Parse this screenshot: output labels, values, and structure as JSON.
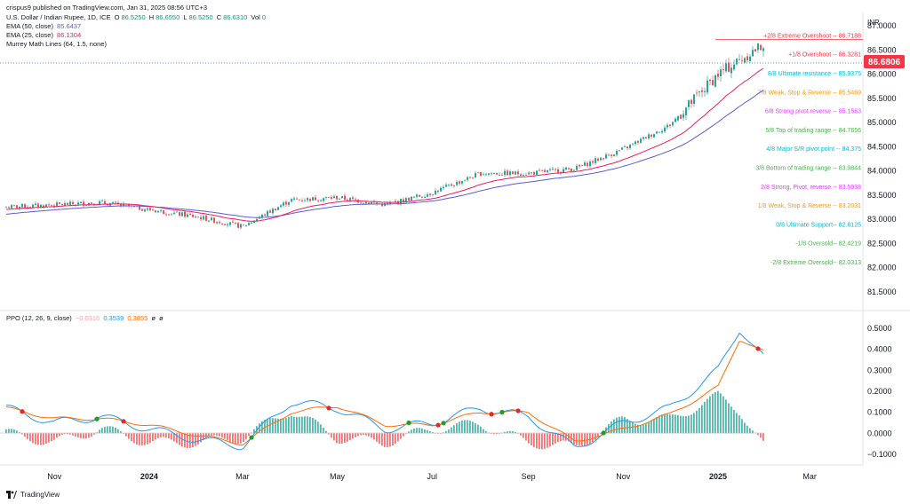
{
  "header": {
    "publisher": "crispus9 published on TradingView.com, Jan 31, 2025 08:56 UTC+3",
    "symbol": "U.S. Dollar / Indian Rupee, 1D, ICE",
    "ohlc": {
      "o_label": "O",
      "o": "86.5250",
      "h_label": "H",
      "h": "86.6550",
      "l_label": "L",
      "l": "86.5250",
      "c_label": "C",
      "c": "86.6310",
      "vol_label": "Vol",
      "vol": "0"
    },
    "ema50": {
      "label": "EMA (50, close)",
      "value": "85.6437"
    },
    "ema25": {
      "label": "EMA (25, close)",
      "value": "86.1304"
    },
    "murrey": {
      "label": "Murrey Math Lines (64, 1.5, none)"
    },
    "currency": "INR"
  },
  "ppo_legend": {
    "label": "PPO (12, 26, 9, close)",
    "hist": "−0.0316",
    "ppo": "0.3539",
    "signal": "0.3855",
    "sym1": "ø",
    "sym2": "ø"
  },
  "price_tag": "86.6806",
  "price_axis": [
    "87.0000",
    "86.5000",
    "86.0000",
    "85.5000",
    "85.0000",
    "84.5000",
    "84.0000",
    "83.5000",
    "83.0000",
    "82.5000",
    "82.0000",
    "81.5000"
  ],
  "ppo_axis": [
    "0.5000",
    "0.4000",
    "0.3000",
    "0.2000",
    "0.1000",
    "0.0000",
    "−0.1000"
  ],
  "time_axis": [
    "Nov",
    "2024",
    "Mar",
    "May",
    "Jul",
    "Sep",
    "Nov",
    "2025",
    "Mar"
  ],
  "murrey_lines": [
    {
      "label": "+2/8 Extreme Overshoot -- 86.7188",
      "value": 86.7188,
      "color": "#f23645"
    },
    {
      "label": "+1/8 Overshoot -- 86.3281",
      "value": 86.3281,
      "color": "#f23645"
    },
    {
      "label": "8/8 Ultimate resistance -- 85.9375",
      "value": 85.9375,
      "color": "#00bcd4"
    },
    {
      "label": "7/8 Weak, Stop & Reverse -- 85.5469",
      "value": 85.5469,
      "color": "#ff9800"
    },
    {
      "label": "6/8 Strong pivot reverse -- 85.1563",
      "value": 85.1563,
      "color": "#e040fb"
    },
    {
      "label": "5/8 Top of trading range -- 84.7656",
      "value": 84.7656,
      "color": "#4caf50"
    },
    {
      "label": "4/8 Major S/R pivot point -- 84.375",
      "value": 84.375,
      "color": "#00bcd4"
    },
    {
      "label": "3/8 Bottom of trading range -- 83.9844",
      "value": 83.9844,
      "color": "#4caf50"
    },
    {
      "label": "2/8 Strong, Pivot, reverse -- 83.5938",
      "value": 83.5938,
      "color": "#e040fb"
    },
    {
      "label": "1/8 Weak, Stop & Reverse -- 83.2031",
      "value": 83.2031,
      "color": "#ff9800"
    },
    {
      "label": "0/8 Ultimate Support-- 82.8125",
      "value": 82.8125,
      "color": "#00bcd4"
    },
    {
      "label": "-1/8 Oversold-- 82.4219",
      "value": 82.4219,
      "color": "#4caf50"
    },
    {
      "label": "-2/8 Extreme Oversold-- 82.0313",
      "value": 82.0313,
      "color": "#4caf50"
    }
  ],
  "brand": "TradingView",
  "colors": {
    "up": "#26a69a",
    "down": "#ef5350",
    "ema50": "#5b5bd6",
    "ema25": "#e91e63",
    "ppo": "#2196f3",
    "signal": "#ff6d00",
    "hist_pos": "#26a69a",
    "hist_neg": "#ef5350"
  },
  "chart_data": [
    {
      "type": "candlestick",
      "title": "U.S. Dollar / Indian Rupee, 1D, ICE",
      "ylim": [
        81.2,
        87.3
      ],
      "x_dates": [
        "2023-10-01",
        "2023-11-01",
        "2023-12-01",
        "2024-01-01",
        "2024-02-01",
        "2024-03-01",
        "2024-04-01",
        "2024-05-01",
        "2024-06-01",
        "2024-07-01",
        "2024-08-01",
        "2024-09-01",
        "2024-10-01",
        "2024-11-01",
        "2024-12-01",
        "2025-01-01",
        "2025-01-31"
      ],
      "close_approx": [
        83.25,
        83.3,
        83.35,
        83.2,
        83.05,
        82.85,
        83.4,
        83.45,
        83.3,
        83.55,
        83.95,
        83.95,
        84.05,
        84.45,
        84.95,
        86.0,
        86.63
      ],
      "series": [
        {
          "name": "EMA (50, close)",
          "last": 85.6437
        },
        {
          "name": "EMA (25, close)",
          "last": 86.1304
        }
      ]
    },
    {
      "type": "line",
      "title": "PPO (12, 26, 9, close)",
      "ylim": [
        -0.13,
        0.55
      ],
      "x_dates": [
        "2023-10-01",
        "2023-11-01",
        "2023-12-01",
        "2024-01-01",
        "2024-02-01",
        "2024-03-01",
        "2024-04-01",
        "2024-05-01",
        "2024-06-01",
        "2024-07-01",
        "2024-08-01",
        "2024-09-01",
        "2024-10-01",
        "2024-11-01",
        "2024-12-01",
        "2025-01-01",
        "2025-01-15",
        "2025-01-31"
      ],
      "series": [
        {
          "name": "PPO",
          "values": [
            0.12,
            0.05,
            0.08,
            0.02,
            -0.03,
            -0.06,
            0.15,
            0.12,
            0.02,
            0.05,
            0.12,
            0.08,
            -0.07,
            0.05,
            0.12,
            0.3,
            0.5,
            0.3539
          ]
        },
        {
          "name": "Signal",
          "values": [
            0.12,
            0.07,
            0.07,
            0.04,
            -0.01,
            -0.05,
            0.1,
            0.13,
            0.04,
            0.04,
            0.1,
            0.1,
            -0.04,
            0.02,
            0.09,
            0.22,
            0.45,
            0.3855
          ]
        },
        {
          "name": "Histogram",
          "last": -0.0316
        }
      ]
    }
  ]
}
